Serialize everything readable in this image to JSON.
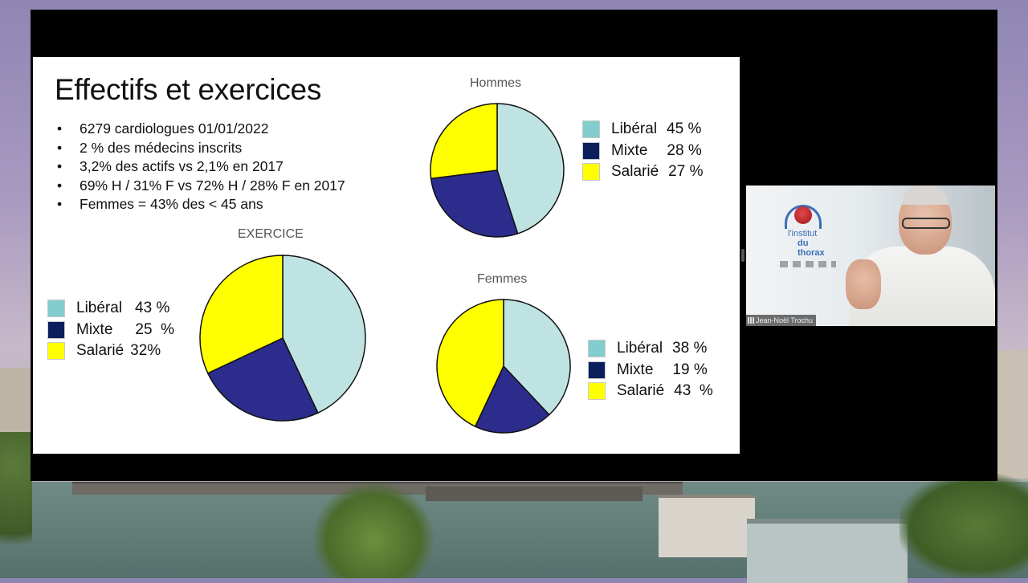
{
  "slide": {
    "title": "Effectifs et exercices",
    "bullet_marker": "•",
    "bullets": [
      "6279 cardiologues 01/01/2022",
      "2 % des médecins inscrits",
      "3,2% des actifs vs 2,1% en  2017",
      "69% H  / 31% F vs 72% H / 28% F en 2017",
      "Femmes = 43% des < 45 ans"
    ]
  },
  "colors": {
    "liberal": "#bfe3e3",
    "liberal_swatch": "#82cdcd",
    "mixte": "#2c2c8c",
    "mixte_swatch": "#0a1f5c",
    "salarie": "#ffff00"
  },
  "chart_data": [
    {
      "type": "pie",
      "title": "EXERCICE",
      "categories": [
        "Libéral",
        "Mixte",
        "Salarié"
      ],
      "values": [
        43,
        25,
        32
      ],
      "legend": [
        {
          "label": "Libéral",
          "value": "43 %"
        },
        {
          "label": "Mixte",
          "value": "25  %"
        },
        {
          "label": "Salarié",
          "value": "32%"
        }
      ],
      "legend_placement": "left"
    },
    {
      "type": "pie",
      "title": "Hommes",
      "categories": [
        "Libéral",
        "Mixte",
        "Salarié"
      ],
      "values": [
        45,
        28,
        27
      ],
      "legend": [
        {
          "label": "Libéral",
          "value": "45 %"
        },
        {
          "label": "Mixte",
          "value": "28 %"
        },
        {
          "label": "Salarié",
          "value": "27 %"
        }
      ],
      "legend_placement": "right"
    },
    {
      "type": "pie",
      "title": "Femmes",
      "categories": [
        "Libéral",
        "Mixte",
        "Salarié"
      ],
      "values": [
        38,
        19,
        43
      ],
      "legend": [
        {
          "label": "Libéral",
          "value": "38 %"
        },
        {
          "label": "Mixte",
          "value": "19 %"
        },
        {
          "label": "Salarié",
          "value": "43  %"
        }
      ],
      "legend_placement": "right"
    }
  ],
  "video": {
    "participant_name": "Jean-Noël Trochu",
    "logo_line1": "l'institut",
    "logo_line2": "du thorax"
  }
}
